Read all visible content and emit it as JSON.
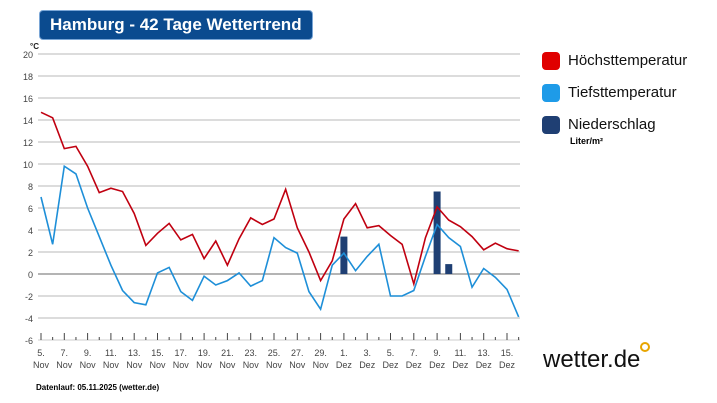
{
  "title": "Hamburg - 42 Tage Wettertrend",
  "footer": "Datenlauf: 05.11.2025 (wetter.de)",
  "logo": "wetter.de",
  "legend": [
    {
      "label": "Höchsttemperatur",
      "color": "#e00000"
    },
    {
      "label": "Tiefsttemperatur",
      "color": "#1e9be8"
    },
    {
      "label": "Niederschlag",
      "color": "#1f3f73",
      "unit": "Liter/m²"
    }
  ],
  "chart_data": {
    "type": "line",
    "ylabel": "°C",
    "ylim": [
      -6,
      20
    ],
    "yticks": [
      -6,
      -4,
      -2,
      0,
      2,
      4,
      6,
      8,
      10,
      12,
      14,
      16,
      18,
      20
    ],
    "grid": true,
    "legend_placement": "right",
    "x": [
      "5. Nov",
      "6. Nov",
      "7. Nov",
      "8. Nov",
      "9. Nov",
      "10. Nov",
      "11. Nov",
      "12. Nov",
      "13. Nov",
      "14. Nov",
      "15. Nov",
      "16. Nov",
      "17. Nov",
      "18. Nov",
      "19. Nov",
      "20. Nov",
      "21. Nov",
      "22. Nov",
      "23. Nov",
      "24. Nov",
      "25. Nov",
      "26. Nov",
      "27. Nov",
      "28. Nov",
      "29. Nov",
      "30. Nov",
      "1. Dez",
      "2. Dez",
      "3. Dez",
      "4. Dez",
      "5. Dez",
      "6. Dez",
      "7. Dez",
      "8. Dez",
      "9. Dez",
      "10. Dez",
      "11. Dez",
      "12. Dez",
      "13. Dez",
      "14. Dez",
      "15. Dez",
      "16. Dez"
    ],
    "tick_labels": [
      [
        "5.",
        "Nov"
      ],
      [
        "7.",
        "Nov"
      ],
      [
        "9.",
        "Nov"
      ],
      [
        "11.",
        "Nov"
      ],
      [
        "13.",
        "Nov"
      ],
      [
        "15.",
        "Nov"
      ],
      [
        "17.",
        "Nov"
      ],
      [
        "19.",
        "Nov"
      ],
      [
        "21.",
        "Nov"
      ],
      [
        "23.",
        "Nov"
      ],
      [
        "25.",
        "Nov"
      ],
      [
        "27.",
        "Nov"
      ],
      [
        "29.",
        "Nov"
      ],
      [
        "1.",
        "Dez"
      ],
      [
        "3.",
        "Dez"
      ],
      [
        "5.",
        "Dez"
      ],
      [
        "7.",
        "Dez"
      ],
      [
        "9.",
        "Dez"
      ],
      [
        "11.",
        "Dez"
      ],
      [
        "13.",
        "Dez"
      ],
      [
        "15.",
        "Dez"
      ]
    ],
    "series": [
      {
        "name": "Höchsttemperatur",
        "type": "line",
        "values": [
          14.7,
          14.2,
          11.4,
          11.6,
          9.8,
          7.4,
          7.8,
          7.5,
          5.5,
          2.6,
          3.7,
          4.6,
          3.1,
          3.6,
          1.4,
          3.0,
          0.8,
          3.2,
          5.1,
          4.5,
          5.0,
          7.7,
          4.2,
          2.0,
          -0.6,
          1.2,
          5.0,
          6.4,
          4.2,
          4.4,
          3.5,
          2.7,
          -0.9,
          3.3,
          6.1,
          4.9,
          4.3,
          3.4,
          2.2,
          2.8,
          2.3,
          2.1
        ]
      },
      {
        "name": "Tiefsttemperatur",
        "type": "line",
        "values": [
          7.0,
          2.7,
          9.8,
          9.1,
          6.0,
          3.4,
          0.8,
          -1.5,
          -2.6,
          -2.8,
          0.1,
          0.6,
          -1.6,
          -2.4,
          -0.2,
          -1.0,
          -0.6,
          0.1,
          -1.1,
          -0.6,
          3.3,
          2.4,
          1.9,
          -1.6,
          -3.2,
          0.8,
          1.9,
          0.3,
          1.6,
          2.7,
          -2.0,
          -2.0,
          -1.5,
          1.6,
          4.5,
          3.3,
          2.5,
          -1.2,
          0.5,
          -0.3,
          -1.4,
          -3.9
        ]
      },
      {
        "name": "Niederschlag",
        "type": "bar",
        "values": [
          0,
          0,
          0,
          0,
          0,
          0,
          0,
          0,
          0,
          0,
          0,
          0,
          0,
          0,
          0,
          0,
          0,
          0,
          0,
          0,
          0,
          0,
          0,
          0,
          0,
          0,
          3.4,
          0,
          0,
          0,
          0,
          0,
          0,
          0,
          7.5,
          0.9,
          0,
          0,
          0,
          0,
          0,
          0
        ]
      }
    ]
  }
}
